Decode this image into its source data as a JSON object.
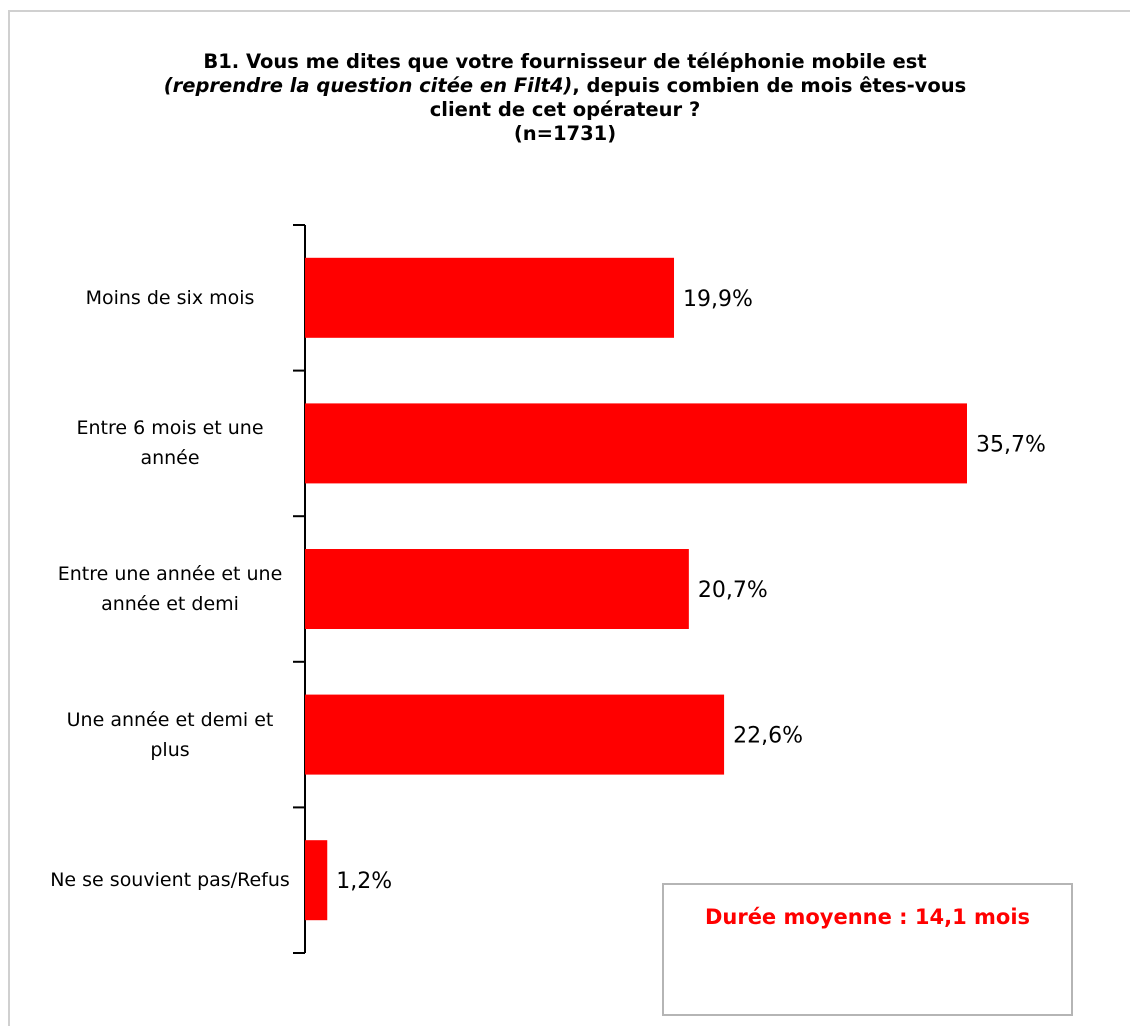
{
  "chart_data": {
    "type": "bar",
    "orientation": "horizontal",
    "title": {
      "line1": "B1. Vous me dites que votre fournisseur de téléphonie mobile  est",
      "line2_italic": "(reprendre la question citée en Filt4)",
      "line2_rest": ",  depuis combien de mois êtes-vous",
      "line3": "client de cet opérateur ?",
      "line4": "(n=1731)"
    },
    "categories": [
      "Moins de six mois",
      "Entre 6 mois et une année",
      "Entre une année et une année et demi",
      "Une année et demi et plus",
      "Ne se souvient pas/Refus"
    ],
    "values": [
      19.9,
      35.7,
      20.7,
      22.6,
      1.2
    ],
    "value_labels": [
      "19,9%",
      "35,7%",
      "20,7%",
      "22,6%",
      "1,2%"
    ],
    "xlim": [
      0,
      40
    ],
    "bar_color": "#ff0000",
    "grid": false,
    "legend": "none"
  },
  "note": {
    "text": "Durée moyenne : 14,1 mois",
    "color": "#ff0000"
  }
}
